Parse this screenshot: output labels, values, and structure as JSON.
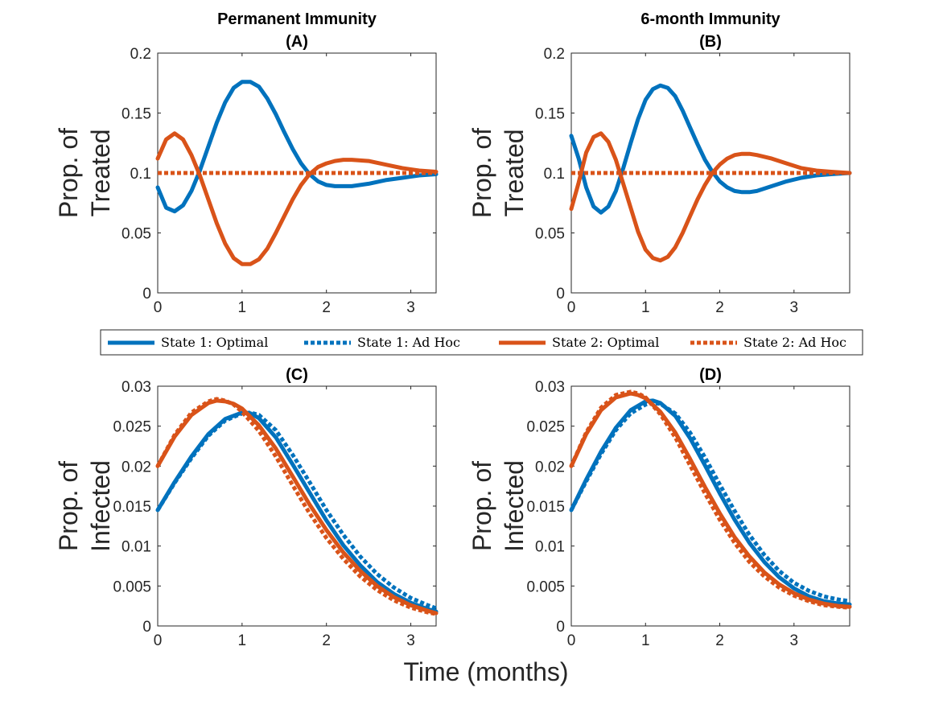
{
  "figure": {
    "xlabel": "Time (months)",
    "colors": {
      "state1": "#0072BD",
      "state2": "#D95319"
    },
    "legend": {
      "placement": "center",
      "entries": [
        {
          "label": "State 1:  Optimal",
          "color": "#0072BD",
          "style": "solid"
        },
        {
          "label": "State 1:  Ad Hoc",
          "color": "#0072BD",
          "style": "dotted"
        },
        {
          "label": "State 2:  Optimal",
          "color": "#D95319",
          "style": "solid"
        },
        {
          "label": "State 2:  Ad Hoc",
          "color": "#D95319",
          "style": "dotted"
        }
      ]
    }
  },
  "chart_data": [
    {
      "type": "line",
      "title": "Permanent Immunity",
      "subtitle": "(A)",
      "ylabel": [
        "Prop. of",
        "Treated"
      ],
      "xlim": [
        0,
        3.3
      ],
      "ylim": [
        0,
        0.2
      ],
      "xticks": [
        0,
        1,
        2,
        3
      ],
      "yticks": [
        0,
        0.05,
        0.1,
        0.15,
        0.2
      ],
      "ytick_labels": [
        "0",
        "0.05",
        "0.1",
        "0.15",
        "0.2"
      ],
      "series": [
        {
          "name": "State 1:  Optimal",
          "color": "#0072BD",
          "style": "solid",
          "x": [
            0,
            0.1,
            0.2,
            0.3,
            0.4,
            0.5,
            0.6,
            0.7,
            0.8,
            0.9,
            1.0,
            1.1,
            1.2,
            1.3,
            1.4,
            1.5,
            1.6,
            1.7,
            1.8,
            1.9,
            2.0,
            2.1,
            2.2,
            2.3,
            2.5,
            2.7,
            2.9,
            3.1,
            3.3
          ],
          "y": [
            0.088,
            0.071,
            0.068,
            0.073,
            0.085,
            0.102,
            0.122,
            0.142,
            0.159,
            0.171,
            0.176,
            0.176,
            0.172,
            0.162,
            0.149,
            0.134,
            0.12,
            0.108,
            0.099,
            0.093,
            0.09,
            0.089,
            0.089,
            0.089,
            0.091,
            0.094,
            0.096,
            0.098,
            0.099
          ]
        },
        {
          "name": "State 1:  Ad Hoc",
          "color": "#0072BD",
          "style": "dotted",
          "x": [
            0,
            3.3
          ],
          "y": [
            0.1,
            0.1
          ]
        },
        {
          "name": "State 2:  Optimal",
          "color": "#D95319",
          "style": "solid",
          "x": [
            0,
            0.1,
            0.2,
            0.3,
            0.4,
            0.5,
            0.6,
            0.7,
            0.8,
            0.9,
            1.0,
            1.1,
            1.2,
            1.3,
            1.4,
            1.5,
            1.6,
            1.7,
            1.8,
            1.9,
            2.0,
            2.1,
            2.2,
            2.3,
            2.5,
            2.7,
            2.9,
            3.1,
            3.3
          ],
          "y": [
            0.112,
            0.128,
            0.133,
            0.128,
            0.115,
            0.098,
            0.078,
            0.058,
            0.041,
            0.029,
            0.024,
            0.024,
            0.028,
            0.037,
            0.05,
            0.064,
            0.078,
            0.09,
            0.099,
            0.105,
            0.108,
            0.11,
            0.111,
            0.111,
            0.11,
            0.107,
            0.104,
            0.102,
            0.101
          ]
        },
        {
          "name": "State 2:  Ad Hoc",
          "color": "#D95319",
          "style": "dotted",
          "x": [
            0,
            3.3
          ],
          "y": [
            0.1,
            0.1
          ]
        }
      ]
    },
    {
      "type": "line",
      "title": "6-month Immunity",
      "subtitle": "(B)",
      "ylabel": [
        "Prop. of",
        "Treated"
      ],
      "xlim": [
        0,
        3.75
      ],
      "ylim": [
        0,
        0.2
      ],
      "xticks": [
        0,
        1,
        2,
        3
      ],
      "yticks": [
        0,
        0.05,
        0.1,
        0.15,
        0.2
      ],
      "ytick_labels": [
        "0",
        "0.05",
        "0.1",
        "0.15",
        "0.2"
      ],
      "series": [
        {
          "name": "State 1:  Optimal",
          "color": "#0072BD",
          "style": "solid",
          "x": [
            0,
            0.1,
            0.2,
            0.3,
            0.4,
            0.5,
            0.6,
            0.7,
            0.8,
            0.9,
            1.0,
            1.1,
            1.2,
            1.3,
            1.4,
            1.5,
            1.6,
            1.7,
            1.8,
            1.9,
            2.0,
            2.1,
            2.2,
            2.3,
            2.4,
            2.5,
            2.7,
            2.9,
            3.1,
            3.3,
            3.5,
            3.75
          ],
          "y": [
            0.131,
            0.112,
            0.088,
            0.072,
            0.067,
            0.072,
            0.085,
            0.104,
            0.125,
            0.145,
            0.161,
            0.17,
            0.173,
            0.171,
            0.164,
            0.152,
            0.138,
            0.124,
            0.111,
            0.101,
            0.093,
            0.088,
            0.085,
            0.084,
            0.084,
            0.085,
            0.089,
            0.093,
            0.096,
            0.098,
            0.099,
            0.1
          ]
        },
        {
          "name": "State 1:  Ad Hoc",
          "color": "#0072BD",
          "style": "dotted",
          "x": [
            0,
            3.75
          ],
          "y": [
            0.1,
            0.1
          ]
        },
        {
          "name": "State 2:  Optimal",
          "color": "#D95319",
          "style": "solid",
          "x": [
            0,
            0.1,
            0.2,
            0.3,
            0.4,
            0.5,
            0.6,
            0.7,
            0.8,
            0.9,
            1.0,
            1.1,
            1.2,
            1.3,
            1.4,
            1.5,
            1.6,
            1.7,
            1.8,
            1.9,
            2.0,
            2.1,
            2.2,
            2.3,
            2.4,
            2.5,
            2.7,
            2.9,
            3.1,
            3.3,
            3.5,
            3.75
          ],
          "y": [
            0.07,
            0.092,
            0.117,
            0.13,
            0.133,
            0.126,
            0.111,
            0.091,
            0.071,
            0.051,
            0.036,
            0.029,
            0.027,
            0.03,
            0.038,
            0.05,
            0.064,
            0.078,
            0.09,
            0.1,
            0.107,
            0.112,
            0.115,
            0.116,
            0.116,
            0.115,
            0.112,
            0.108,
            0.104,
            0.102,
            0.101,
            0.1
          ]
        },
        {
          "name": "State 2:  Ad Hoc",
          "color": "#D95319",
          "style": "dotted",
          "x": [
            0,
            3.75
          ],
          "y": [
            0.1,
            0.1
          ]
        }
      ]
    },
    {
      "type": "line",
      "title": "",
      "subtitle": "(C)",
      "ylabel": [
        "Prop. of",
        "Infected"
      ],
      "xlim": [
        0,
        3.3
      ],
      "ylim": [
        0,
        0.03
      ],
      "xticks": [
        0,
        1,
        2,
        3
      ],
      "yticks": [
        0,
        0.005,
        0.01,
        0.015,
        0.02,
        0.025,
        0.03
      ],
      "ytick_labels": [
        "0",
        "0.005",
        "0.01",
        "0.015",
        "0.02",
        "0.025",
        "0.03"
      ],
      "series": [
        {
          "name": "State 1:  Optimal",
          "color": "#0072BD",
          "style": "solid",
          "x": [
            0,
            0.2,
            0.4,
            0.6,
            0.8,
            1.0,
            1.1,
            1.2,
            1.4,
            1.6,
            1.8,
            2.0,
            2.2,
            2.4,
            2.6,
            2.8,
            3.0,
            3.2,
            3.3
          ],
          "y": [
            0.0145,
            0.018,
            0.0212,
            0.024,
            0.0259,
            0.0267,
            0.0266,
            0.026,
            0.0236,
            0.0202,
            0.0167,
            0.0132,
            0.0101,
            0.0076,
            0.0055,
            0.004,
            0.0029,
            0.0021,
            0.0018
          ]
        },
        {
          "name": "State 1:  Ad Hoc",
          "color": "#0072BD",
          "style": "dotted",
          "x": [
            0,
            0.2,
            0.4,
            0.6,
            0.8,
            1.0,
            1.1,
            1.2,
            1.4,
            1.6,
            1.8,
            2.0,
            2.2,
            2.4,
            2.6,
            2.8,
            3.0,
            3.2,
            3.3
          ],
          "y": [
            0.0145,
            0.0179,
            0.021,
            0.0238,
            0.0257,
            0.0266,
            0.0267,
            0.0264,
            0.0245,
            0.0214,
            0.018,
            0.0145,
            0.0114,
            0.0087,
            0.0065,
            0.0048,
            0.0035,
            0.0026,
            0.0022
          ]
        },
        {
          "name": "State 2:  Optimal",
          "color": "#D95319",
          "style": "solid",
          "x": [
            0,
            0.2,
            0.4,
            0.6,
            0.7,
            0.8,
            0.9,
            1.0,
            1.2,
            1.4,
            1.6,
            1.8,
            2.0,
            2.2,
            2.4,
            2.6,
            2.8,
            3.0,
            3.2,
            3.3
          ],
          "y": [
            0.02,
            0.0237,
            0.0264,
            0.0279,
            0.0282,
            0.0281,
            0.0278,
            0.0272,
            0.0251,
            0.0222,
            0.0187,
            0.0152,
            0.012,
            0.0092,
            0.0069,
            0.005,
            0.0036,
            0.0026,
            0.0019,
            0.0016
          ]
        },
        {
          "name": "State 2:  Ad Hoc",
          "color": "#D95319",
          "style": "dotted",
          "x": [
            0,
            0.2,
            0.4,
            0.6,
            0.7,
            0.8,
            0.9,
            1.0,
            1.2,
            1.4,
            1.6,
            1.8,
            2.0,
            2.2,
            2.4,
            2.6,
            2.8,
            3.0,
            3.2,
            3.3
          ],
          "y": [
            0.02,
            0.0239,
            0.0267,
            0.0281,
            0.0284,
            0.0282,
            0.0277,
            0.0268,
            0.0244,
            0.0212,
            0.0176,
            0.0141,
            0.011,
            0.0084,
            0.0062,
            0.0045,
            0.0032,
            0.0023,
            0.0017,
            0.0015
          ]
        }
      ]
    },
    {
      "type": "line",
      "title": "",
      "subtitle": "(D)",
      "ylabel": [
        "Prop. of",
        "Infected"
      ],
      "xlim": [
        0,
        3.75
      ],
      "ylim": [
        0,
        0.03
      ],
      "xticks": [
        0,
        1,
        2,
        3
      ],
      "yticks": [
        0,
        0.005,
        0.01,
        0.015,
        0.02,
        0.025,
        0.03
      ],
      "ytick_labels": [
        "0",
        "0.005",
        "0.01",
        "0.015",
        "0.02",
        "0.025",
        "0.03"
      ],
      "series": [
        {
          "name": "State 1:  Optimal",
          "color": "#0072BD",
          "style": "solid",
          "x": [
            0,
            0.2,
            0.4,
            0.6,
            0.8,
            1.0,
            1.1,
            1.2,
            1.4,
            1.6,
            1.8,
            2.0,
            2.2,
            2.4,
            2.6,
            2.8,
            3.0,
            3.2,
            3.4,
            3.6,
            3.75
          ],
          "y": [
            0.0145,
            0.0183,
            0.0218,
            0.0248,
            0.027,
            0.0281,
            0.0282,
            0.0279,
            0.0263,
            0.0235,
            0.0201,
            0.0166,
            0.0133,
            0.0104,
            0.008,
            0.0061,
            0.0047,
            0.0037,
            0.0031,
            0.0028,
            0.0027
          ]
        },
        {
          "name": "State 1:  Ad Hoc",
          "color": "#0072BD",
          "style": "dotted",
          "x": [
            0,
            0.2,
            0.4,
            0.6,
            0.8,
            1.0,
            1.1,
            1.2,
            1.4,
            1.6,
            1.8,
            2.0,
            2.2,
            2.4,
            2.6,
            2.8,
            3.0,
            3.2,
            3.4,
            3.6,
            3.75
          ],
          "y": [
            0.0145,
            0.0181,
            0.0215,
            0.0245,
            0.0266,
            0.0277,
            0.0279,
            0.0278,
            0.0266,
            0.0242,
            0.0211,
            0.0177,
            0.0144,
            0.0114,
            0.0089,
            0.0069,
            0.0054,
            0.0044,
            0.0037,
            0.0033,
            0.0031
          ]
        },
        {
          "name": "State 2:  Optimal",
          "color": "#D95319",
          "style": "solid",
          "x": [
            0,
            0.2,
            0.4,
            0.6,
            0.8,
            0.9,
            1.0,
            1.2,
            1.4,
            1.6,
            1.8,
            2.0,
            2.2,
            2.4,
            2.6,
            2.8,
            3.0,
            3.2,
            3.4,
            3.6,
            3.75
          ],
          "y": [
            0.02,
            0.024,
            0.027,
            0.0286,
            0.0291,
            0.0289,
            0.0285,
            0.0268,
            0.0242,
            0.0209,
            0.0174,
            0.0141,
            0.0111,
            0.0087,
            0.0067,
            0.0052,
            0.0041,
            0.0033,
            0.0028,
            0.0025,
            0.0024
          ]
        },
        {
          "name": "State 2:  Ad Hoc",
          "color": "#D95319",
          "style": "dotted",
          "x": [
            0,
            0.2,
            0.4,
            0.6,
            0.8,
            0.9,
            1.0,
            1.2,
            1.4,
            1.6,
            1.8,
            2.0,
            2.2,
            2.4,
            2.6,
            2.8,
            3.0,
            3.2,
            3.4,
            3.6,
            3.75
          ],
          "y": [
            0.02,
            0.0242,
            0.0273,
            0.0289,
            0.0293,
            0.0291,
            0.0286,
            0.0265,
            0.0236,
            0.0201,
            0.0166,
            0.0133,
            0.0104,
            0.008,
            0.0062,
            0.0048,
            0.0038,
            0.0031,
            0.0026,
            0.0024,
            0.0023
          ]
        }
      ]
    }
  ]
}
